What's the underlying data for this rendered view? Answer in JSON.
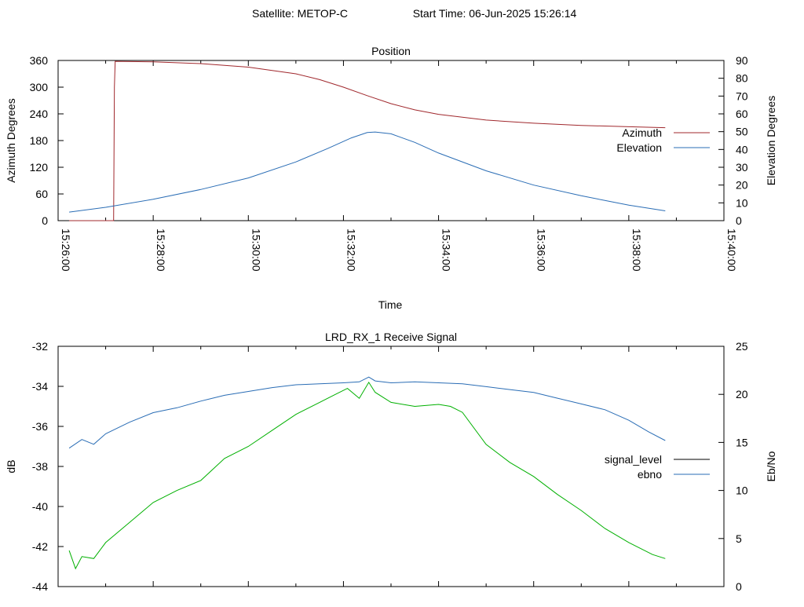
{
  "header": {
    "satellite_label": "Satellite: METOP-C",
    "start_time_label": "Start Time: 06-Jun-2025 15:26:14"
  },
  "chart_data": [
    {
      "type": "line",
      "title": "Position",
      "xlabel": "Time",
      "ylabel": "Azimuth Degrees",
      "y2label": "Elevation Degrees",
      "xlim": [
        0,
        840
      ],
      "ylim": [
        0,
        360
      ],
      "y2lim": [
        0,
        90
      ],
      "x_ticks": [
        0,
        120,
        240,
        360,
        480,
        600,
        720,
        840
      ],
      "x_tick_labels": [
        "15:26:00",
        "15:28:00",
        "15:30:00",
        "15:32:00",
        "15:34:00",
        "15:36:00",
        "15:38:00",
        "15:40:00"
      ],
      "y_ticks": [
        0,
        60,
        120,
        180,
        240,
        300,
        360
      ],
      "y_tick_labels": [
        "0",
        "60",
        "120",
        "180",
        "240",
        "300",
        "360"
      ],
      "y2_ticks": [
        0,
        10,
        20,
        30,
        40,
        50,
        60,
        70,
        80,
        90
      ],
      "y2_tick_labels": [
        "0",
        "10",
        "20",
        "30",
        "40",
        "50",
        "60",
        "70",
        "80",
        "90"
      ],
      "legend_position": "right",
      "series": [
        {
          "name": "Azimuth",
          "axis": "y",
          "color": "#a0282d",
          "points": [
            [
              14,
              0
            ],
            [
              70,
              0
            ],
            [
              71,
              300
            ],
            [
              72,
              358
            ],
            [
              120,
              357
            ],
            [
              180,
              353
            ],
            [
              240,
              345
            ],
            [
              300,
              330
            ],
            [
              330,
              317
            ],
            [
              360,
              300
            ],
            [
              390,
              281
            ],
            [
              420,
              263
            ],
            [
              450,
              249
            ],
            [
              480,
              239
            ],
            [
              540,
              226
            ],
            [
              600,
              219
            ],
            [
              660,
              214
            ],
            [
              720,
              211
            ],
            [
              766,
              209
            ]
          ]
        },
        {
          "name": "Elevation",
          "axis": "y2",
          "color": "#2a6db5",
          "points": [
            [
              14,
              4.8
            ],
            [
              60,
              7.5
            ],
            [
              120,
              12
            ],
            [
              180,
              17.5
            ],
            [
              240,
              24
            ],
            [
              300,
              33
            ],
            [
              340,
              40.5
            ],
            [
              370,
              46.5
            ],
            [
              390,
              49.5
            ],
            [
              400,
              49.8
            ],
            [
              420,
              48.8
            ],
            [
              450,
              44
            ],
            [
              480,
              38
            ],
            [
              540,
              28
            ],
            [
              600,
              20
            ],
            [
              660,
              14
            ],
            [
              720,
              8.7
            ],
            [
              766,
              5.5
            ]
          ]
        }
      ]
    },
    {
      "type": "line",
      "title": "LRD_RX_1 Receive Signal",
      "ylabel": "dB",
      "y2label": "Eb/No",
      "xlim": [
        0,
        840
      ],
      "ylim": [
        -44,
        -32
      ],
      "y2lim": [
        0,
        25
      ],
      "x_ticks": [
        0,
        120,
        240,
        360,
        480,
        600,
        720,
        840
      ],
      "y_ticks": [
        -44,
        -42,
        -40,
        -38,
        -36,
        -34,
        -32
      ],
      "y_tick_labels": [
        "-44",
        "-42",
        "-40",
        "-38",
        "-36",
        "-34",
        "-32"
      ],
      "y2_ticks": [
        0,
        5,
        10,
        15,
        20,
        25
      ],
      "y2_tick_labels": [
        "0",
        "5",
        "10",
        "15",
        "20",
        "25"
      ],
      "legend_position": "right",
      "series": [
        {
          "name": "signal_level",
          "axis": "y",
          "color": "#000000",
          "legend_only": true,
          "points": []
        },
        {
          "name": "ebno",
          "axis": "y2",
          "color": "#2a6db5",
          "points": [
            [
              14,
              14.4
            ],
            [
              30,
              15.3
            ],
            [
              45,
              14.8
            ],
            [
              60,
              15.9
            ],
            [
              90,
              17.1
            ],
            [
              120,
              18.1
            ],
            [
              150,
              18.6
            ],
            [
              180,
              19.3
            ],
            [
              210,
              19.9
            ],
            [
              240,
              20.3
            ],
            [
              270,
              20.7
            ],
            [
              300,
              21.0
            ],
            [
              330,
              21.1
            ],
            [
              360,
              21.2
            ],
            [
              380,
              21.3
            ],
            [
              392,
              21.8
            ],
            [
              400,
              21.4
            ],
            [
              420,
              21.2
            ],
            [
              450,
              21.3
            ],
            [
              480,
              21.2
            ],
            [
              510,
              21.1
            ],
            [
              540,
              20.8
            ],
            [
              570,
              20.5
            ],
            [
              600,
              20.2
            ],
            [
              630,
              19.6
            ],
            [
              660,
              19.0
            ],
            [
              690,
              18.4
            ],
            [
              720,
              17.3
            ],
            [
              745,
              16.1
            ],
            [
              766,
              15.2
            ]
          ]
        },
        {
          "name": "",
          "axis": "y",
          "color": "#00b000",
          "points": [
            [
              14,
              -42.2
            ],
            [
              22,
              -43.1
            ],
            [
              30,
              -42.5
            ],
            [
              45,
              -42.6
            ],
            [
              60,
              -41.8
            ],
            [
              90,
              -40.8
            ],
            [
              120,
              -39.8
            ],
            [
              150,
              -39.2
            ],
            [
              180,
              -38.7
            ],
            [
              210,
              -37.6
            ],
            [
              240,
              -37.0
            ],
            [
              270,
              -36.2
            ],
            [
              300,
              -35.4
            ],
            [
              330,
              -34.8
            ],
            [
              350,
              -34.4
            ],
            [
              365,
              -34.1
            ],
            [
              380,
              -34.6
            ],
            [
              392,
              -33.8
            ],
            [
              400,
              -34.3
            ],
            [
              420,
              -34.8
            ],
            [
              450,
              -35.0
            ],
            [
              480,
              -34.9
            ],
            [
              495,
              -35.0
            ],
            [
              510,
              -35.3
            ],
            [
              540,
              -36.9
            ],
            [
              570,
              -37.8
            ],
            [
              600,
              -38.5
            ],
            [
              630,
              -39.4
            ],
            [
              660,
              -40.2
            ],
            [
              690,
              -41.1
            ],
            [
              720,
              -41.8
            ],
            [
              750,
              -42.4
            ],
            [
              766,
              -42.6
            ]
          ]
        }
      ]
    }
  ]
}
